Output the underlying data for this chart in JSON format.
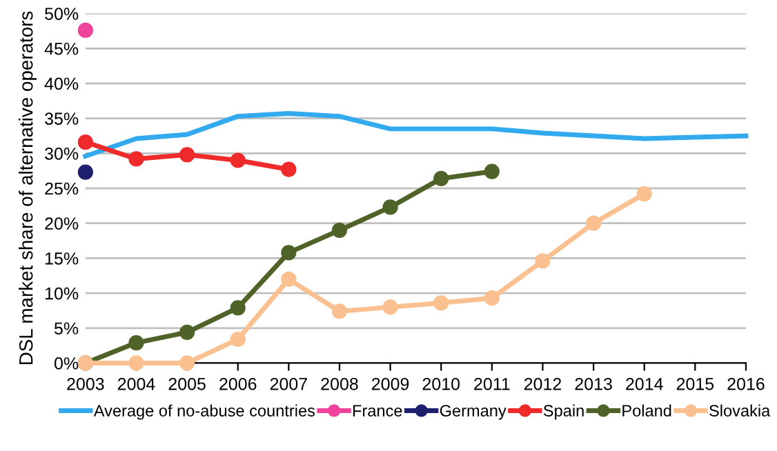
{
  "chart_data": {
    "type": "line",
    "ylabel": "DSL market share of alternative operators",
    "x": [
      2003,
      2004,
      2005,
      2006,
      2007,
      2008,
      2009,
      2010,
      2011,
      2012,
      2013,
      2014,
      2015,
      2016
    ],
    "xlim": [
      2003,
      2016
    ],
    "xticks": [
      2003,
      2004,
      2005,
      2006,
      2007,
      2008,
      2009,
      2010,
      2011,
      2012,
      2013,
      2014,
      2015,
      2016
    ],
    "ylim": [
      0,
      50
    ],
    "yticks": [
      {
        "value": 0,
        "label": "0%"
      },
      {
        "value": 5,
        "label": "5%"
      },
      {
        "value": 10,
        "label": "10%"
      },
      {
        "value": 15,
        "label": "15%"
      },
      {
        "value": 20,
        "label": "20%"
      },
      {
        "value": 25,
        "label": "25%"
      },
      {
        "value": 30,
        "label": "30%"
      },
      {
        "value": 35,
        "label": "35%"
      },
      {
        "value": 40,
        "label": "40%"
      },
      {
        "value": 45,
        "label": "45%"
      },
      {
        "value": 50,
        "label": "50%"
      }
    ],
    "grid": "y",
    "legend": "bottom",
    "marker": "circle",
    "series": [
      {
        "name": "Average of no-abuse countries",
        "color": "#33aaee",
        "marker": "none",
        "values": [
          29.6,
          32.1,
          32.7,
          35.3,
          35.7,
          35.3,
          33.5,
          33.5,
          33.5,
          32.9,
          32.5,
          32.1,
          32.3,
          32.5
        ]
      },
      {
        "name": "France",
        "color": "#f0449c",
        "values": [
          47.6,
          null,
          null,
          null,
          null,
          null,
          null,
          null,
          null,
          null,
          null,
          null,
          null,
          null
        ]
      },
      {
        "name": "Germany",
        "color": "#1f1f6f",
        "values": [
          27.3,
          null,
          null,
          null,
          null,
          null,
          null,
          null,
          null,
          null,
          null,
          null,
          null,
          null
        ]
      },
      {
        "name": "Spain",
        "color": "#ee2a2a",
        "values": [
          31.6,
          29.2,
          29.8,
          29.0,
          27.7,
          null,
          null,
          null,
          null,
          null,
          null,
          null,
          null,
          null
        ]
      },
      {
        "name": "Poland",
        "color": "#4f6228",
        "values": [
          0,
          2.9,
          4.4,
          7.9,
          15.8,
          19.0,
          22.3,
          26.4,
          27.4,
          null,
          null,
          null,
          null,
          null
        ]
      },
      {
        "name": "Slovakia",
        "color": "#fac090",
        "values": [
          0,
          0,
          0,
          3.4,
          12.0,
          7.4,
          8.0,
          8.6,
          9.3,
          14.6,
          20.0,
          24.2,
          null,
          null
        ]
      }
    ]
  }
}
